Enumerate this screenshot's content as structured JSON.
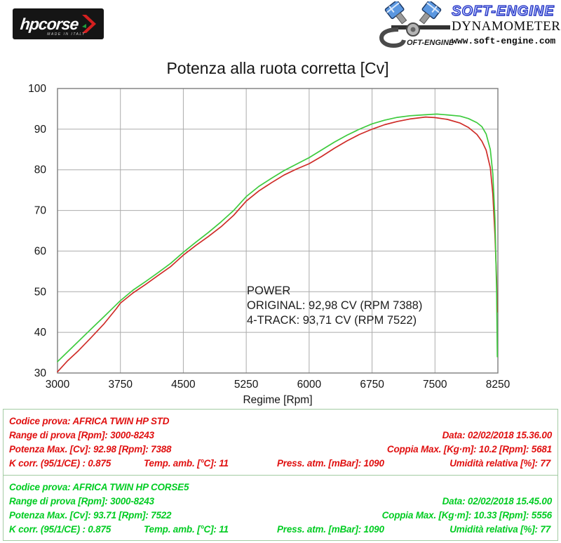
{
  "header": {
    "hpcorse": {
      "brand": "hpcorse",
      "made_in": "MADE IN ITALY"
    },
    "softengine": {
      "brand": "SOFT-ENGINE",
      "subtitle": "DYNAMOMETERS",
      "url": "www.soft-engine.com",
      "s_wordmark": "OFT-ENGINE"
    }
  },
  "chart_data": {
    "type": "line",
    "title": "Potenza alla ruota corretta [Cv]",
    "xlabel": "Regime [Rpm]",
    "ylabel": "",
    "xlim": [
      3000,
      8250
    ],
    "ylim": [
      30,
      100
    ],
    "x_ticks": [
      3000,
      3750,
      4500,
      5250,
      6000,
      6750,
      7500,
      8250
    ],
    "y_ticks": [
      30,
      40,
      50,
      60,
      70,
      80,
      90,
      100
    ],
    "grid": true,
    "grid_color": "#ababab",
    "frame_color": "#7d7d7d",
    "legend_position": "none",
    "annotation": {
      "lines": [
        "POWER",
        "ORIGINAL: 92,98 CV (RPM 7388)",
        "4-TRACK: 93,71 CV (RPM 7522)"
      ]
    },
    "series": [
      {
        "name": "ORIGINAL (AFRICA TWIN HP STD)",
        "color": "#cf2c28",
        "peak": {
          "cv": 92.98,
          "rpm": 7388
        },
        "points": [
          [
            3000,
            30.3
          ],
          [
            3120,
            33
          ],
          [
            3250,
            35.5
          ],
          [
            3400,
            38.7
          ],
          [
            3550,
            42
          ],
          [
            3700,
            45.8
          ],
          [
            3750,
            47.2
          ],
          [
            3900,
            49.7
          ],
          [
            4050,
            51.8
          ],
          [
            4200,
            54
          ],
          [
            4350,
            56.2
          ],
          [
            4500,
            59
          ],
          [
            4650,
            61.4
          ],
          [
            4800,
            63.6
          ],
          [
            4950,
            66
          ],
          [
            5100,
            68.8
          ],
          [
            5250,
            72.3
          ],
          [
            5400,
            74.8
          ],
          [
            5550,
            76.8
          ],
          [
            5700,
            78.7
          ],
          [
            5850,
            80.2
          ],
          [
            6000,
            81.5
          ],
          [
            6150,
            83.3
          ],
          [
            6300,
            85.3
          ],
          [
            6450,
            87.1
          ],
          [
            6600,
            88.7
          ],
          [
            6750,
            90
          ],
          [
            6900,
            91.1
          ],
          [
            7050,
            91.9
          ],
          [
            7200,
            92.5
          ],
          [
            7388,
            92.98
          ],
          [
            7500,
            92.85
          ],
          [
            7650,
            92.4
          ],
          [
            7800,
            91.5
          ],
          [
            7900,
            90.4
          ],
          [
            8000,
            88.7
          ],
          [
            8060,
            87
          ],
          [
            8110,
            84.8
          ],
          [
            8160,
            80.5
          ],
          [
            8190,
            74
          ],
          [
            8215,
            64
          ],
          [
            8235,
            53
          ],
          [
            8243,
            45
          ]
        ]
      },
      {
        "name": "4-TRACK (AFRICA TWIN HP CORSE5)",
        "color": "#3ecb3e",
        "peak": {
          "cv": 93.71,
          "rpm": 7522
        },
        "points": [
          [
            3000,
            32.8
          ],
          [
            3120,
            35.2
          ],
          [
            3250,
            37.8
          ],
          [
            3400,
            40.8
          ],
          [
            3550,
            43.8
          ],
          [
            3700,
            46.8
          ],
          [
            3750,
            47.8
          ],
          [
            3900,
            50.4
          ],
          [
            4050,
            52.5
          ],
          [
            4200,
            54.7
          ],
          [
            4350,
            57
          ],
          [
            4500,
            59.7
          ],
          [
            4650,
            62.2
          ],
          [
            4800,
            64.6
          ],
          [
            4950,
            67.2
          ],
          [
            5100,
            70
          ],
          [
            5250,
            73.4
          ],
          [
            5400,
            75.9
          ],
          [
            5550,
            77.9
          ],
          [
            5700,
            79.8
          ],
          [
            5850,
            81.4
          ],
          [
            6000,
            83
          ],
          [
            6150,
            84.9
          ],
          [
            6300,
            86.8
          ],
          [
            6450,
            88.5
          ],
          [
            6600,
            90
          ],
          [
            6750,
            91.3
          ],
          [
            6900,
            92.2
          ],
          [
            7050,
            92.9
          ],
          [
            7200,
            93.3
          ],
          [
            7350,
            93.5
          ],
          [
            7522,
            93.71
          ],
          [
            7650,
            93.5
          ],
          [
            7800,
            93.2
          ],
          [
            7900,
            92.6
          ],
          [
            8000,
            91.6
          ],
          [
            8060,
            90.6
          ],
          [
            8110,
            88.8
          ],
          [
            8160,
            85
          ],
          [
            8190,
            79
          ],
          [
            8215,
            68
          ],
          [
            8235,
            50
          ],
          [
            8243,
            34
          ]
        ]
      }
    ]
  },
  "results": {
    "std": {
      "codice": "Codice prova: AFRICA TWIN HP STD",
      "range": "Range di prova [Rpm]: 3000-8243",
      "data": "Data: 02/02/2018  15.36.00",
      "potenza": "Potenza Max. [Cv]: 92.98   [Rpm]: 7388",
      "coppia": "Coppia Max. [Kg·m]: 10.2   [Rpm]: 5681",
      "kcorr": "K corr. (95/1/CE) : 0.875",
      "temp": "Temp. amb. [°C]: 11",
      "press": "Press. atm. [mBar]: 1090",
      "umidita": "Umidità relativa [%]: 77"
    },
    "corse": {
      "codice": "Codice prova: AFRICA TWIN HP CORSE5",
      "range": "Range di prova [Rpm]: 3000-8243",
      "data": "Data: 02/02/2018  15.45.00",
      "potenza": "Potenza Max. [Cv]: 93.71   [Rpm]: 7522",
      "coppia": "Coppia Max. [Kg·m]: 10.33   [Rpm]: 5556",
      "kcorr": "K corr. (95/1/CE) : 0.875",
      "temp": "Temp. amb. [°C]: 11",
      "press": "Press. atm. [mBar]: 1090",
      "umidita": "Umidità relativa [%]: 77"
    }
  }
}
